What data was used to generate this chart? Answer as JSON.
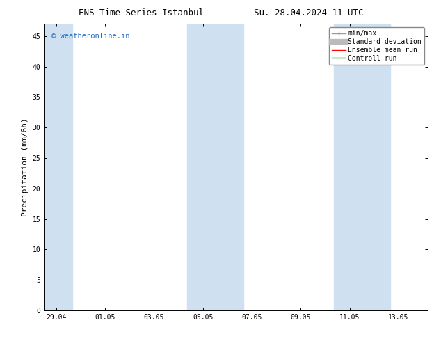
{
  "title_left": "ENS Time Series Istanbul",
  "title_right": "Su. 28.04.2024 11 UTC",
  "ylabel": "Precipitation (mm/6h)",
  "ylim": [
    0,
    47
  ],
  "yticks": [
    0,
    5,
    10,
    15,
    20,
    25,
    30,
    35,
    40,
    45
  ],
  "xtick_labels": [
    "29.04",
    "01.05",
    "03.05",
    "05.05",
    "07.05",
    "09.05",
    "11.05",
    "13.05"
  ],
  "xtick_positions": [
    0,
    2,
    4,
    6,
    8,
    10,
    12,
    14
  ],
  "xlim": [
    -0.5,
    15.2
  ],
  "watermark": "© weatheronline.in",
  "watermark_color": "#1a6ac8",
  "bg_color": "#ffffff",
  "plot_bg_color": "#ffffff",
  "band_color": "#cfe0f0",
  "band_positions": [
    {
      "x_start": -0.5,
      "x_end": 0.65
    },
    {
      "x_start": 5.35,
      "x_end": 7.65
    },
    {
      "x_start": 11.35,
      "x_end": 13.65
    }
  ],
  "legend_labels": [
    "min/max",
    "Standard deviation",
    "Ensemble mean run",
    "Controll run"
  ],
  "legend_colors": [
    "#999999",
    "#bbbbbb",
    "#ff0000",
    "#008000"
  ],
  "title_fontsize": 9,
  "tick_fontsize": 7,
  "ylabel_fontsize": 8,
  "legend_fontsize": 7
}
